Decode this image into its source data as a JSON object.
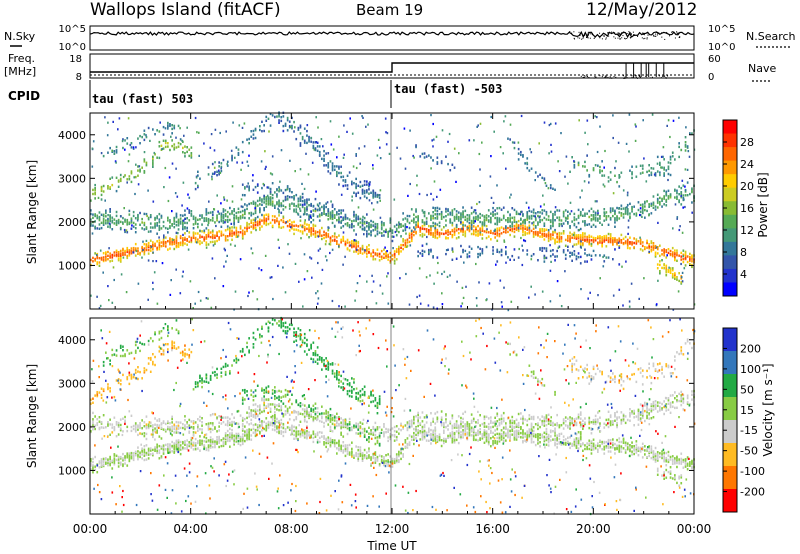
{
  "header": {
    "station": "Wallops Island (fitACF)",
    "beam": "Beam 19",
    "date": "12/May/2012"
  },
  "top_panels": {
    "nsky_label": "N.Sky",
    "nsky_ticks": [
      "10^5",
      "10^0"
    ],
    "nsearch_label": "N.Search",
    "nsearch_ticks": [
      "10^5",
      "10^0"
    ],
    "freq_label_1": "Freq.",
    "freq_label_2": "[MHz]",
    "freq_ticks": [
      "18",
      "8"
    ],
    "nave_label": "Nave",
    "nave_ticks": [
      "60",
      "0"
    ],
    "cpid_label": "CPID",
    "cpid_segments": [
      {
        "label": "tau (fast) 503",
        "start_hour": 0,
        "end_hour": 12
      },
      {
        "label": "tau (fast) -503",
        "start_hour": 12,
        "end_hour": 24
      }
    ]
  },
  "x_axis": {
    "label": "Time UT",
    "ticks": [
      "00:00",
      "04:00",
      "08:00",
      "12:00",
      "16:00",
      "20:00",
      "00:00"
    ]
  },
  "chart_data": [
    {
      "type": "heatmap",
      "title": "",
      "xlabel": "Time UT",
      "ylabel": "Slant Range [km]",
      "xlim": [
        0,
        24
      ],
      "ylim": [
        0,
        4500
      ],
      "yticks": [
        "1000",
        "2000",
        "3000",
        "4000"
      ],
      "colorbar": {
        "label": "Power [dB]",
        "ticks": [
          "28",
          "24",
          "20",
          "16",
          "12",
          "8",
          "4"
        ],
        "colors": [
          "#ff0000",
          "#ff3300",
          "#ff6600",
          "#ff9900",
          "#ffcc00",
          "#cccc22",
          "#88bb33",
          "#55aa55",
          "#449977",
          "#337799",
          "#3355aa",
          "#2233cc",
          "#0000ff"
        ]
      },
      "bands": [
        {
          "name": "main",
          "points": [
            [
              0,
              1100
            ],
            [
              2,
              1350
            ],
            [
              4,
              1600
            ],
            [
              5,
              1650
            ],
            [
              6,
              1750
            ],
            [
              7,
              2050
            ],
            [
              8,
              1900
            ],
            [
              9,
              1750
            ],
            [
              10,
              1500
            ],
            [
              11,
              1300
            ],
            [
              12,
              1150
            ],
            [
              13,
              1850
            ],
            [
              14,
              1700
            ],
            [
              15,
              1850
            ],
            [
              16,
              1700
            ],
            [
              17,
              1850
            ],
            [
              18,
              1700
            ],
            [
              19,
              1600
            ],
            [
              20,
              1550
            ],
            [
              21,
              1550
            ],
            [
              22,
              1450
            ],
            [
              23,
              1250
            ],
            [
              24,
              1100
            ]
          ],
          "value": 26,
          "width": 170,
          "density": 0.85
        },
        {
          "name": "upper-green",
          "points": [
            [
              0,
              2050
            ],
            [
              3,
              1950
            ],
            [
              5,
              2050
            ],
            [
              6,
              2150
            ],
            [
              7,
              2450
            ],
            [
              8,
              2350
            ],
            [
              9,
              2200
            ],
            [
              10,
              2000
            ],
            [
              11,
              1900
            ],
            [
              12,
              1800
            ],
            [
              13,
              2100
            ],
            [
              16,
              2050
            ],
            [
              19,
              2050
            ],
            [
              21,
              2100
            ],
            [
              23,
              2550
            ],
            [
              24,
              2650
            ]
          ],
          "value": 12,
          "width": 250,
          "density": 0.6
        },
        {
          "name": "lower-blue",
          "points": [
            [
              13,
              1300
            ],
            [
              17,
              1250
            ],
            [
              21,
              1200
            ]
          ],
          "value": 7,
          "width": 180,
          "density": 0.25
        },
        {
          "name": "diag-up",
          "points": [
            [
              4,
              2900
            ],
            [
              5.5,
              3350
            ],
            [
              7,
              4300
            ],
            [
              7.3,
              4500
            ]
          ],
          "value": 9,
          "width": 200,
          "density": 0.3
        },
        {
          "name": "diag-down",
          "points": [
            [
              7.3,
              4500
            ],
            [
              8.5,
              3900
            ],
            [
              10,
              3000
            ],
            [
              11.5,
              2500
            ]
          ],
          "value": 8,
          "width": 240,
          "density": 0.45
        },
        {
          "name": "arc-low",
          "points": [
            [
              6,
              2700
            ],
            [
              7,
              2800
            ],
            [
              8.5,
              2500
            ],
            [
              10,
              2100
            ],
            [
              11.5,
              1700
            ]
          ],
          "value": 8,
          "width": 200,
          "density": 0.35
        },
        {
          "name": "early-mid",
          "points": [
            [
              0,
              2600
            ],
            [
              2,
              3200
            ],
            [
              3,
              3800
            ],
            [
              4,
              3600
            ]
          ],
          "value": 16,
          "width": 220,
          "density": 0.3
        },
        {
          "name": "early-high",
          "points": [
            [
              0.5,
              3500
            ],
            [
              2,
              3900
            ],
            [
              3.5,
              4300
            ]
          ],
          "value": 10,
          "width": 200,
          "density": 0.25
        },
        {
          "name": "aft-right",
          "points": [
            [
              16.5,
              3900
            ],
            [
              17.5,
              3200
            ],
            [
              18.5,
              2700
            ]
          ],
          "value": 8,
          "width": 180,
          "density": 0.3
        },
        {
          "name": "aft-left",
          "points": [
            [
              12.5,
              3800
            ],
            [
              13.5,
              3400
            ],
            [
              14.5,
              3300
            ]
          ],
          "value": 7,
          "width": 160,
          "density": 0.25
        },
        {
          "name": "night-upper",
          "points": [
            [
              19,
              3400
            ],
            [
              21,
              3000
            ],
            [
              23,
              3300
            ],
            [
              24,
              4000
            ]
          ],
          "value": 12,
          "width": 260,
          "density": 0.25
        },
        {
          "name": "late-tail",
          "points": [
            [
              22.5,
              1000
            ],
            [
              23.5,
              700
            ]
          ],
          "value": 22,
          "width": 160,
          "density": 0.7
        }
      ]
    },
    {
      "type": "heatmap",
      "title": "",
      "xlabel": "Time UT",
      "ylabel": "Slant Range [km]",
      "xlim": [
        0,
        24
      ],
      "ylim": [
        0,
        4500
      ],
      "yticks": [
        "1000",
        "2000",
        "3000",
        "4000"
      ],
      "colorbar": {
        "label": "Velocity [m s⁻¹]",
        "ticks": [
          "200",
          "100",
          "50",
          "15",
          "-15",
          "-50",
          "-100",
          "-200"
        ],
        "colors": [
          "#2233cc",
          "#3377bb",
          "#22aa44",
          "#88cc44",
          "#cccccc",
          "#ffbb22",
          "#ff7700",
          "#ff0000"
        ]
      },
      "bands": [
        {
          "name": "main",
          "points": [
            [
              0,
              1100
            ],
            [
              2,
              1350
            ],
            [
              4,
              1600
            ],
            [
              5,
              1650
            ],
            [
              6,
              1750
            ],
            [
              7,
              2050
            ],
            [
              8,
              1900
            ],
            [
              9,
              1750
            ],
            [
              10,
              1500
            ],
            [
              11,
              1300
            ],
            [
              12,
              1150
            ],
            [
              13,
              1850
            ],
            [
              14,
              1700
            ],
            [
              15,
              1850
            ],
            [
              16,
              1700
            ],
            [
              17,
              1850
            ],
            [
              18,
              1700
            ],
            [
              19,
              1600
            ],
            [
              20,
              1550
            ],
            [
              21,
              1550
            ],
            [
              22,
              1450
            ],
            [
              23,
              1250
            ],
            [
              24,
              1100
            ]
          ],
          "value": 0,
          "width": 180,
          "density": 0.85
        },
        {
          "name": "upper-band",
          "points": [
            [
              0,
              2050
            ],
            [
              3,
              1950
            ],
            [
              5,
              2050
            ],
            [
              6,
              2150
            ],
            [
              7,
              2450
            ],
            [
              8,
              2350
            ],
            [
              9,
              2200
            ],
            [
              10,
              2000
            ],
            [
              11,
              1900
            ],
            [
              12,
              1800
            ],
            [
              13,
              2100
            ],
            [
              16,
              2050
            ],
            [
              19,
              2050
            ],
            [
              21,
              2100
            ],
            [
              23,
              2550
            ],
            [
              24,
              2650
            ]
          ],
          "value": -5,
          "width": 250,
          "density": 0.55
        },
        {
          "name": "diag-up",
          "points": [
            [
              4,
              2900
            ],
            [
              5.5,
              3350
            ],
            [
              7,
              4300
            ],
            [
              7.3,
              4500
            ]
          ],
          "value": 40,
          "width": 200,
          "density": 0.35
        },
        {
          "name": "diag-down",
          "points": [
            [
              7.3,
              4500
            ],
            [
              8.5,
              3900
            ],
            [
              10,
              3000
            ],
            [
              11.5,
              2500
            ]
          ],
          "value": 45,
          "width": 240,
          "density": 0.55
        },
        {
          "name": "arc-low",
          "points": [
            [
              6,
              2700
            ],
            [
              7,
              2800
            ],
            [
              8.5,
              2500
            ],
            [
              10,
              2100
            ],
            [
              11.5,
              1700
            ]
          ],
          "value": 30,
          "width": 200,
          "density": 0.35
        },
        {
          "name": "early-mid",
          "points": [
            [
              0,
              2600
            ],
            [
              2,
              3200
            ],
            [
              3,
              3800
            ],
            [
              4,
              3600
            ]
          ],
          "value": -60,
          "width": 220,
          "density": 0.3
        },
        {
          "name": "early-high",
          "points": [
            [
              0.5,
              3500
            ],
            [
              2,
              3900
            ],
            [
              3.5,
              4300
            ]
          ],
          "value": 25,
          "width": 200,
          "density": 0.25
        },
        {
          "name": "aft-right",
          "points": [
            [
              16.5,
              3900
            ],
            [
              17.5,
              3200
            ],
            [
              18.5,
              2700
            ]
          ],
          "value": 5,
          "width": 180,
          "density": 0.3
        },
        {
          "name": "night-upper",
          "points": [
            [
              19,
              3400
            ],
            [
              21,
              3000
            ],
            [
              23,
              3300
            ],
            [
              24,
              4000
            ]
          ],
          "value": -30,
          "width": 260,
          "density": 0.25
        },
        {
          "name": "late-tail",
          "points": [
            [
              22.5,
              1000
            ],
            [
              23.5,
              700
            ]
          ],
          "value": 0,
          "width": 160,
          "density": 0.6
        }
      ]
    }
  ]
}
